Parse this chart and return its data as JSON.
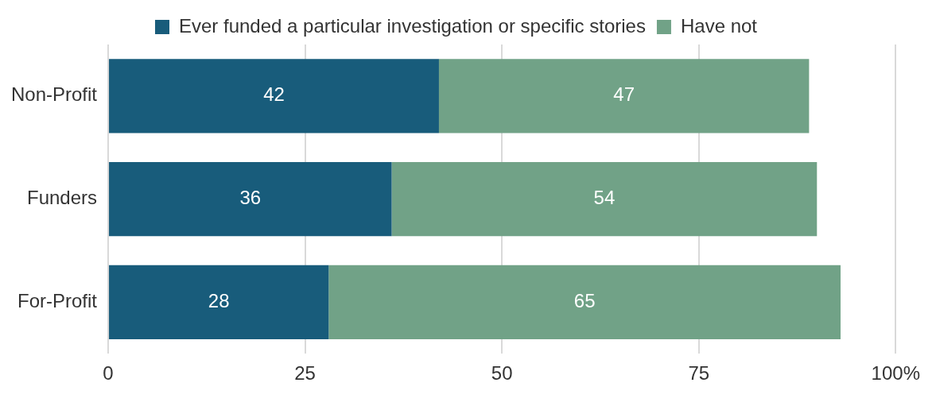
{
  "chart_data": {
    "type": "bar",
    "orientation": "horizontal",
    "stacked": true,
    "categories": [
      "Non-Profit",
      "Funders",
      "For-Profit"
    ],
    "series": [
      {
        "name": "Ever funded a particular investigation or specific stories",
        "color": "#185c7b",
        "values": [
          42,
          36,
          28
        ]
      },
      {
        "name": "Have not",
        "color": "#71a287",
        "values": [
          47,
          54,
          65
        ]
      }
    ],
    "xlim": [
      0,
      100
    ],
    "xticks": [
      0,
      25,
      50,
      75,
      {
        "value": 100,
        "label": "100%"
      }
    ],
    "grid": "x",
    "legend": "top",
    "data_labels": true
  }
}
